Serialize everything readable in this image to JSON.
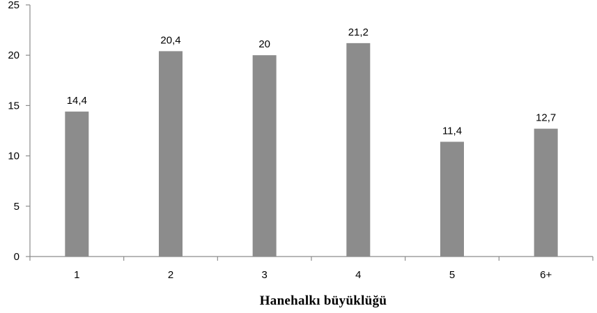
{
  "chart_data": {
    "type": "bar",
    "categories": [
      "1",
      "2",
      "3",
      "4",
      "5",
      "6+"
    ],
    "values": [
      14.4,
      20.4,
      20,
      21.2,
      11.4,
      12.7
    ],
    "data_labels": [
      "14,4",
      "20,4",
      "20",
      "21,2",
      "11,4",
      "12,7"
    ],
    "title": "",
    "xlabel": "Hanehalkı büyüklüğü",
    "ylabel": "",
    "ylim": [
      0,
      25
    ],
    "yticks": [
      0,
      5,
      10,
      15,
      20,
      25
    ],
    "ytick_labels": [
      "0",
      "5",
      "10",
      "15",
      "20",
      "25"
    ],
    "grid": false,
    "legend": "none",
    "bar_color": "#8c8c8c",
    "axis_color": "#8c8c8c"
  }
}
